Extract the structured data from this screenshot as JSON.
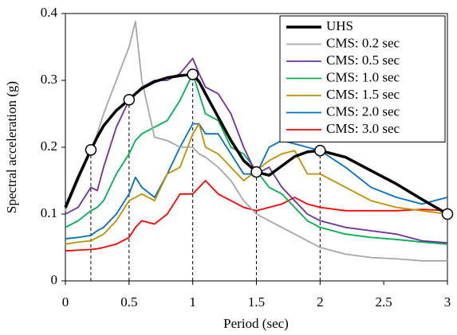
{
  "chart_data": {
    "type": "line",
    "x_label": "Period (sec)",
    "y_label": "Spectral acceleration (g)",
    "x": [
      0,
      0.1,
      0.2,
      0.25,
      0.3,
      0.4,
      0.5,
      0.55,
      0.6,
      0.7,
      0.8,
      0.9,
      1,
      1.05,
      1.1,
      1.2,
      1.3,
      1.4,
      1.5,
      1.6,
      1.7,
      1.8,
      1.9,
      2,
      2.2,
      2.4,
      2.6,
      2.8,
      3
    ],
    "xlim": [
      0,
      3
    ],
    "xticks": [
      0,
      0.5,
      1,
      1.5,
      2,
      2.5,
      3
    ],
    "ylim": [
      0,
      0.4
    ],
    "yticks": [
      0,
      0.1,
      0.2,
      0.3,
      0.4
    ],
    "legend": "upper right",
    "series": [
      {
        "name": "UHS",
        "color": "#000000",
        "markers_x": [
          0.2,
          0.5,
          1,
          1.5,
          2,
          3
        ],
        "values": [
          0.11,
          0.155,
          0.196,
          0.215,
          0.232,
          0.255,
          0.271,
          0.28,
          0.288,
          0.298,
          0.304,
          0.307,
          0.309,
          0.298,
          0.28,
          0.245,
          0.21,
          0.18,
          0.163,
          0.158,
          0.172,
          0.186,
          0.193,
          0.195,
          0.185,
          0.165,
          0.145,
          0.122,
          0.1
        ]
      },
      {
        "name": "CMS: 0.2 sec",
        "color": "#a6a6a6",
        "values": [
          0.105,
          0.15,
          0.195,
          0.22,
          0.25,
          0.3,
          0.35,
          0.388,
          0.3,
          0.215,
          0.21,
          0.2,
          0.2,
          0.19,
          0.185,
          0.17,
          0.15,
          0.12,
          0.1,
          0.09,
          0.08,
          0.07,
          0.06,
          0.05,
          0.04,
          0.035,
          0.033,
          0.03,
          0.03
        ]
      },
      {
        "name": "CMS: 0.5 sec",
        "color": "#7030a0",
        "values": [
          0.1,
          0.11,
          0.14,
          0.135,
          0.17,
          0.23,
          0.27,
          0.28,
          0.29,
          0.3,
          0.3,
          0.31,
          0.333,
          0.31,
          0.29,
          0.28,
          0.25,
          0.2,
          0.16,
          0.17,
          0.14,
          0.12,
          0.1,
          0.09,
          0.08,
          0.075,
          0.07,
          0.06,
          0.057
        ]
      },
      {
        "name": "CMS: 1.0 sec",
        "color": "#00b050",
        "values": [
          0.08,
          0.09,
          0.105,
          0.11,
          0.12,
          0.16,
          0.19,
          0.21,
          0.22,
          0.23,
          0.24,
          0.27,
          0.31,
          0.28,
          0.25,
          0.24,
          0.2,
          0.19,
          0.165,
          0.14,
          0.13,
          0.11,
          0.09,
          0.08,
          0.07,
          0.065,
          0.062,
          0.058,
          0.055
        ]
      },
      {
        "name": "CMS: 1.5 sec",
        "color": "#bf9000",
        "values": [
          0.055,
          0.058,
          0.06,
          0.065,
          0.07,
          0.09,
          0.12,
          0.125,
          0.13,
          0.12,
          0.16,
          0.17,
          0.22,
          0.235,
          0.2,
          0.19,
          0.17,
          0.15,
          0.165,
          0.18,
          0.19,
          0.195,
          0.16,
          0.16,
          0.14,
          0.12,
          0.11,
          0.105,
          0.1
        ]
      },
      {
        "name": "CMS: 2.0 sec",
        "color": "#0070c0",
        "values": [
          0.063,
          0.065,
          0.068,
          0.075,
          0.08,
          0.1,
          0.13,
          0.155,
          0.14,
          0.125,
          0.16,
          0.2,
          0.235,
          0.235,
          0.22,
          0.22,
          0.19,
          0.16,
          0.16,
          0.2,
          0.21,
          0.205,
          0.2,
          0.195,
          0.17,
          0.14,
          0.125,
          0.115,
          0.125
        ]
      },
      {
        "name": "CMS: 3.0 sec",
        "color": "#ff0000",
        "values": [
          0.045,
          0.046,
          0.047,
          0.048,
          0.05,
          0.055,
          0.065,
          0.08,
          0.09,
          0.085,
          0.1,
          0.13,
          0.13,
          0.14,
          0.15,
          0.13,
          0.12,
          0.11,
          0.105,
          0.11,
          0.115,
          0.125,
          0.115,
          0.11,
          0.105,
          0.105,
          0.105,
          0.107,
          0.105
        ]
      }
    ]
  }
}
